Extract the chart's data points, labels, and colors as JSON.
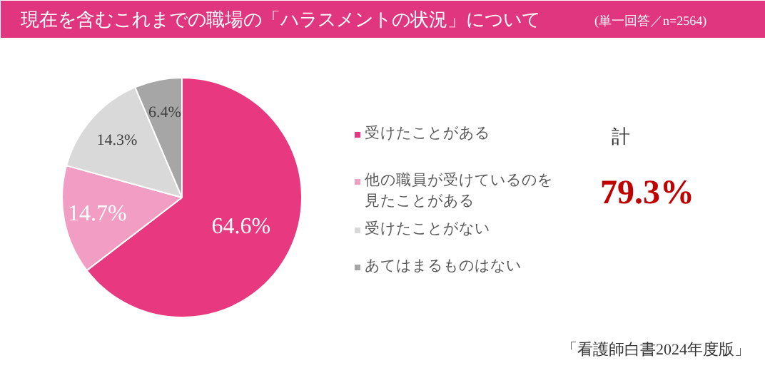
{
  "chart_data": {
    "type": "pie",
    "title": "現在を含むこれまでの職場の「ハラスメントの状況」について",
    "subtitle": "(単一回答／n=2564)",
    "categories": [
      "受けたことがある",
      "他の職員が受けているのを見たことがある",
      "受けたことがない",
      "あてはまるものはない"
    ],
    "values": [
      64.6,
      14.7,
      14.3,
      6.4
    ],
    "colors": [
      "#e8387f",
      "#f29ec4",
      "#d9d9d9",
      "#a6a6a6"
    ],
    "value_labels": [
      "64.6%",
      "14.7%",
      "14.3%",
      "6.4%"
    ],
    "legend": "right",
    "annotations": [
      "計",
      "79.3%",
      "「看護師白書2024年度版」"
    ]
  }
}
